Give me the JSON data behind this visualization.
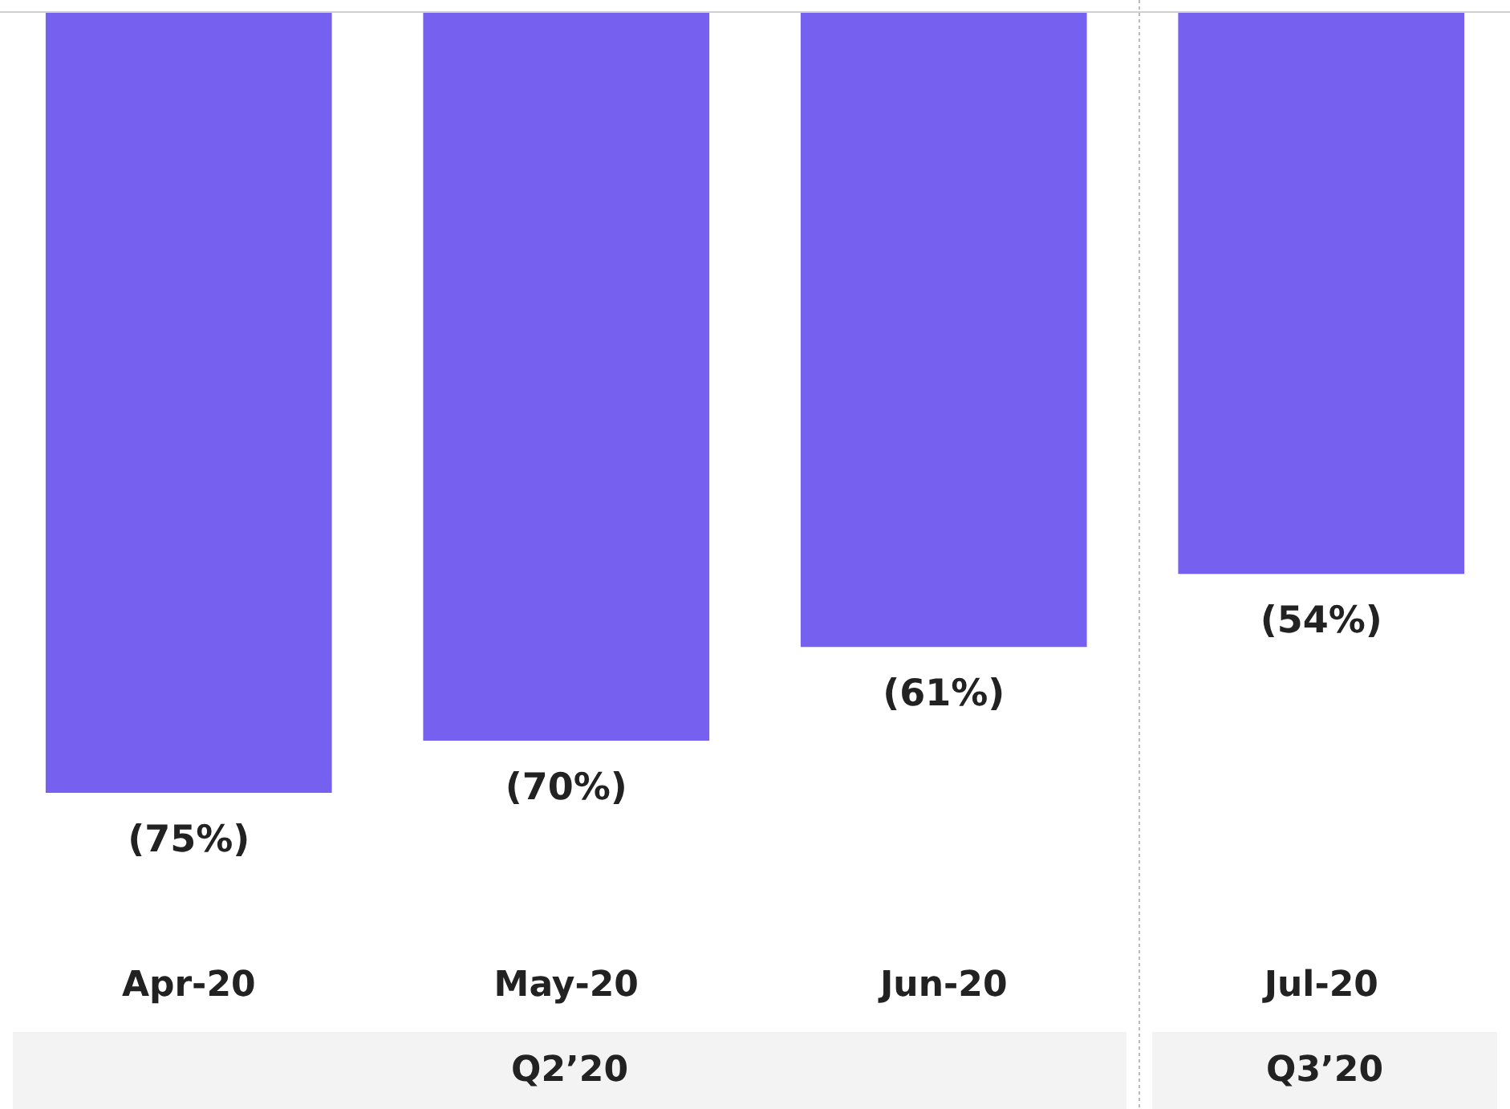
{
  "chart_data": {
    "type": "bar",
    "categories": [
      "Apr-20",
      "May-20",
      "Jun-20",
      "Jul-20"
    ],
    "values": [
      -75,
      -70,
      -61,
      -54
    ],
    "color": "#7660f0",
    "value_labels": [
      "(75%)",
      "(70%)",
      "(61%)",
      "(54%)"
    ],
    "ylim": [
      -75,
      0
    ],
    "tick_labels": "x",
    "ref_lines": [
      {
        "axis": "y",
        "value": 0,
        "color": "#d0d0d0"
      }
    ],
    "annotations": [
      "Q2’20",
      "Q3’20"
    ]
  }
}
